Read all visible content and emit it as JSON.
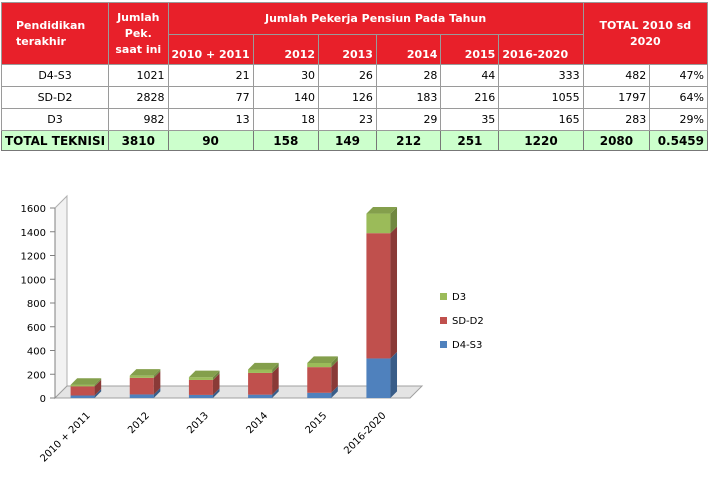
{
  "table": {
    "headers": {
      "education": "Pendidikan terakhir",
      "current": "Jumlah Pek. saat ini",
      "group": "Jumlah Pekerja Pensiun Pada Tahun",
      "years": [
        "2010 + 2011",
        "2012",
        "2013",
        "2014",
        "2015",
        "2016-2020"
      ],
      "total": "TOTAL 2010 sd 2020"
    },
    "rows": [
      {
        "label": "D4-S3",
        "current": "1021",
        "values": [
          "21",
          "30",
          "26",
          "28",
          "44",
          "333"
        ],
        "total": "482",
        "pct": "47%"
      },
      {
        "label": "SD-D2",
        "current": "2828",
        "values": [
          "77",
          "140",
          "126",
          "183",
          "216",
          "1055"
        ],
        "total": "1797",
        "pct": "64%"
      },
      {
        "label": "D3",
        "current": "982",
        "values": [
          "13",
          "18",
          "23",
          "29",
          "35",
          "165"
        ],
        "total": "283",
        "pct": "29%"
      }
    ],
    "total_row": {
      "label": "TOTAL TEKNISI",
      "current": "3810",
      "values": [
        "90",
        "158",
        "149",
        "212",
        "251",
        "1220"
      ],
      "total": "2080",
      "pct": "0.5459"
    }
  },
  "chart_data": {
    "type": "bar",
    "stacked": true,
    "three_d": true,
    "categories": [
      "2010 + 2011",
      "2012",
      "2013",
      "2014",
      "2015",
      "2016-2020"
    ],
    "series": [
      {
        "name": "D4-S3",
        "values": [
          21,
          30,
          26,
          28,
          44,
          333
        ],
        "color": "#4f81bd"
      },
      {
        "name": "SD-D2",
        "values": [
          77,
          140,
          126,
          183,
          216,
          1055
        ],
        "color": "#c0504d"
      },
      {
        "name": "D3",
        "values": [
          13,
          18,
          23,
          29,
          35,
          165
        ],
        "color": "#9bbb59"
      }
    ],
    "ylim": [
      0,
      1600
    ],
    "yticks": [
      "0",
      "200",
      "400",
      "600",
      "800",
      "1000",
      "1200",
      "1400",
      "1600"
    ],
    "grid": false,
    "legend": "right"
  }
}
